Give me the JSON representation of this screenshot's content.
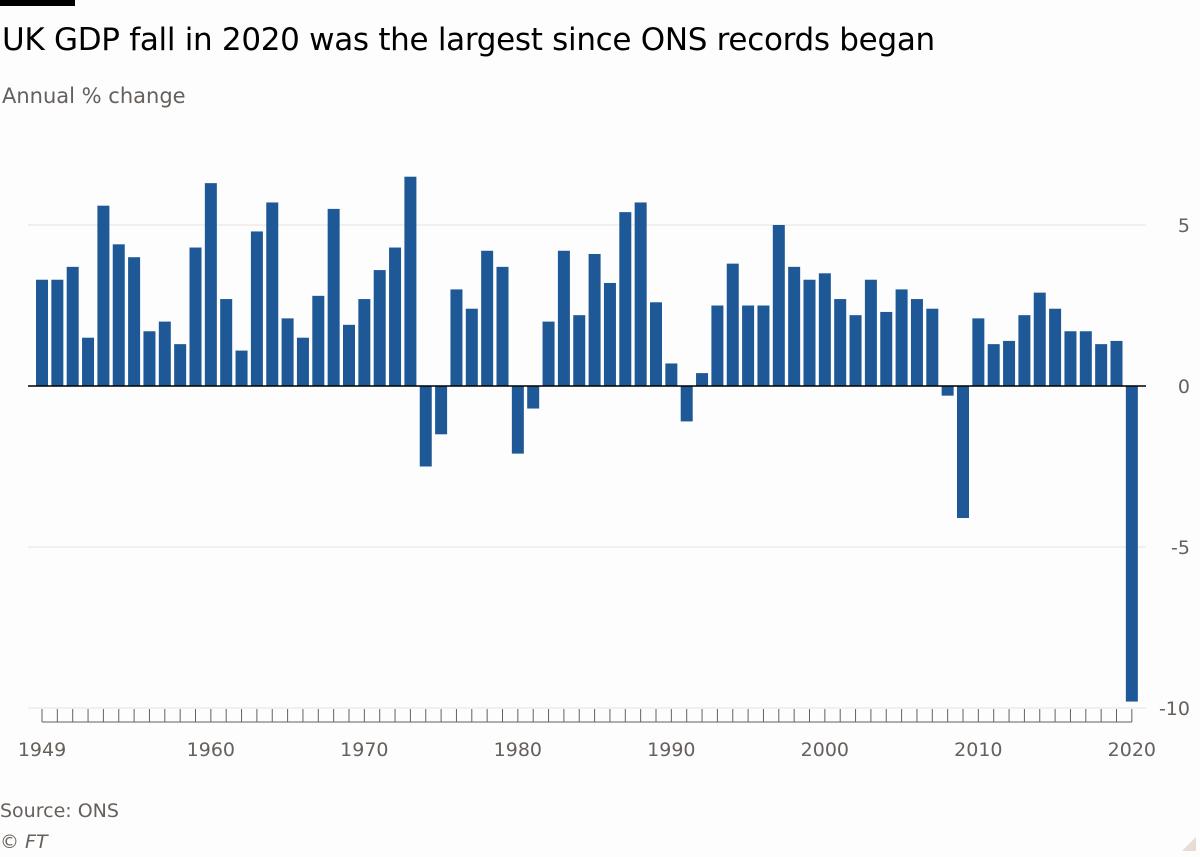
{
  "header": {
    "title": "UK GDP fall in 2020 was the largest since ONS records began",
    "subtitle": "Annual % change"
  },
  "footer": {
    "source": "Source: ONS",
    "copyright": "© FT"
  },
  "colors": {
    "bar": "#1f5896",
    "grid": "#e6e1dc",
    "zero_line": "#000000",
    "text": "#66605c"
  },
  "chart_data": {
    "type": "bar",
    "title": "UK GDP fall in 2020 was the largest since ONS records began",
    "ylabel": "Annual % change",
    "xlabel": "",
    "ylim": [
      -10,
      7
    ],
    "yticks": [
      5,
      0,
      -5,
      -10
    ],
    "xtick_labels": [
      "1949",
      "1960",
      "1970",
      "1980",
      "1990",
      "2000",
      "2010",
      "2020"
    ],
    "grid": true,
    "categories": [
      1949,
      1950,
      1951,
      1952,
      1953,
      1954,
      1955,
      1956,
      1957,
      1958,
      1959,
      1960,
      1961,
      1962,
      1963,
      1964,
      1965,
      1966,
      1967,
      1968,
      1969,
      1970,
      1971,
      1972,
      1973,
      1974,
      1975,
      1976,
      1977,
      1978,
      1979,
      1980,
      1981,
      1982,
      1983,
      1984,
      1985,
      1986,
      1987,
      1988,
      1989,
      1990,
      1991,
      1992,
      1993,
      1994,
      1995,
      1996,
      1997,
      1998,
      1999,
      2000,
      2001,
      2002,
      2003,
      2004,
      2005,
      2006,
      2007,
      2008,
      2009,
      2010,
      2011,
      2012,
      2013,
      2014,
      2015,
      2016,
      2017,
      2018,
      2019,
      2020
    ],
    "values": [
      3.3,
      3.3,
      3.7,
      1.5,
      5.6,
      4.4,
      4.0,
      1.7,
      2.0,
      1.3,
      4.3,
      6.3,
      2.7,
      1.1,
      4.8,
      5.7,
      2.1,
      1.5,
      2.8,
      5.5,
      1.9,
      2.7,
      3.6,
      4.3,
      6.5,
      -2.5,
      -1.5,
      3.0,
      2.4,
      4.2,
      3.7,
      -2.1,
      -0.7,
      2.0,
      4.2,
      2.2,
      4.1,
      3.2,
      5.4,
      5.7,
      2.6,
      0.7,
      -1.1,
      0.4,
      2.5,
      3.8,
      2.5,
      2.5,
      5.0,
      3.7,
      3.3,
      3.5,
      2.7,
      2.2,
      3.3,
      2.3,
      3.0,
      2.7,
      2.4,
      -0.3,
      -4.1,
      2.1,
      1.3,
      1.4,
      2.2,
      2.9,
      2.4,
      1.7,
      1.7,
      1.3,
      1.4,
      -9.8
    ]
  }
}
